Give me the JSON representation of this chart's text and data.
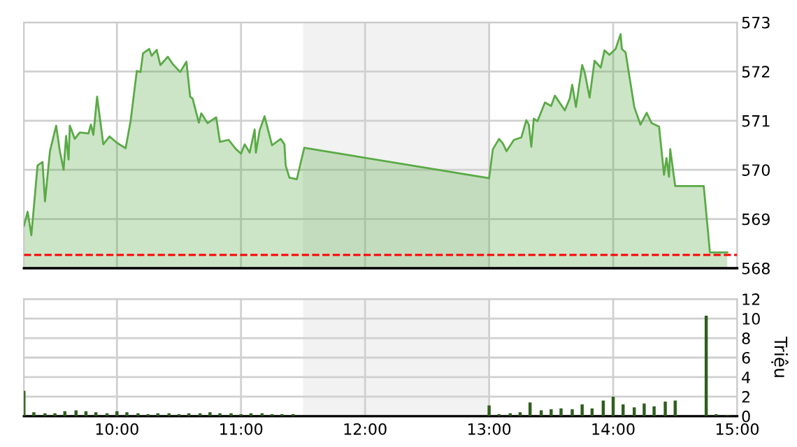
{
  "chart_data": [
    {
      "type": "area",
      "color": "#5aaa46",
      "x": [
        9.25,
        9.28,
        9.31,
        9.36,
        9.4,
        9.42,
        9.46,
        9.51,
        9.54,
        9.57,
        9.59,
        9.61,
        9.62,
        9.66,
        9.7,
        9.77,
        9.79,
        9.81,
        9.84,
        9.89,
        9.94,
        10.0,
        10.07,
        10.11,
        10.16,
        10.19,
        10.21,
        10.26,
        10.28,
        10.32,
        10.35,
        10.41,
        10.45,
        10.51,
        10.56,
        10.59,
        10.61,
        10.66,
        10.68,
        10.73,
        10.8,
        10.83,
        10.9,
        10.96,
        11.0,
        11.03,
        11.07,
        11.11,
        11.12,
        11.15,
        11.19,
        11.25,
        11.32,
        11.35,
        11.36,
        11.39,
        11.45,
        11.51,
        13.0,
        13.03,
        13.08,
        13.11,
        13.14,
        13.2,
        13.26,
        13.3,
        13.32,
        13.34,
        13.36,
        13.39,
        13.45,
        13.5,
        13.53,
        13.61,
        13.65,
        13.67,
        13.7,
        13.75,
        13.77,
        13.81,
        13.85,
        13.9,
        13.93,
        13.97,
        14.02,
        14.06,
        14.07,
        14.1,
        14.17,
        14.22,
        14.27,
        14.31,
        14.37,
        14.41,
        14.43,
        14.45,
        14.46,
        14.5,
        14.73,
        14.78,
        14.92
      ],
      "values": [
        568.86,
        569.15,
        568.67,
        570.09,
        570.16,
        569.36,
        570.38,
        570.9,
        570.38,
        570.0,
        570.69,
        570.21,
        570.9,
        570.63,
        570.76,
        570.74,
        570.92,
        570.71,
        571.49,
        570.52,
        570.68,
        570.55,
        570.44,
        570.99,
        572.01,
        571.99,
        572.37,
        572.46,
        572.32,
        572.44,
        572.13,
        572.3,
        572.15,
        571.99,
        572.2,
        571.49,
        571.45,
        570.96,
        571.15,
        570.95,
        571.07,
        570.57,
        570.61,
        570.42,
        570.33,
        570.52,
        570.35,
        570.82,
        570.35,
        570.8,
        571.09,
        570.5,
        570.63,
        570.52,
        570.09,
        569.84,
        569.81,
        570.45,
        569.83,
        570.42,
        570.63,
        570.54,
        570.38,
        570.61,
        570.66,
        571.01,
        570.92,
        570.47,
        571.04,
        570.99,
        571.37,
        571.3,
        571.51,
        571.21,
        571.45,
        571.73,
        571.28,
        572.13,
        571.99,
        571.47,
        572.22,
        572.08,
        572.43,
        572.34,
        572.46,
        572.76,
        572.46,
        572.39,
        571.28,
        570.92,
        571.16,
        570.95,
        570.88,
        569.9,
        570.24,
        569.86,
        570.42,
        569.67,
        569.67,
        568.32,
        568.32
      ],
      "xlim": [
        9.25,
        15
      ],
      "ylim": [
        568,
        573
      ],
      "yticks": [
        568,
        569,
        570,
        571,
        572,
        573
      ],
      "xticks": [
        {
          "value": 10,
          "label": null
        },
        {
          "value": 11,
          "label": null
        },
        {
          "value": 12,
          "label": null
        },
        {
          "value": 13,
          "label": null
        },
        {
          "value": 14,
          "label": null
        },
        {
          "value": 15,
          "label": null
        }
      ],
      "tick_labels": "y",
      "grid": true,
      "bands": [
        {
          "axis": "x",
          "from": 11.5,
          "to": 13.0,
          "color": "#f2f2f2"
        }
      ],
      "ref_lines": [
        {
          "axis": "y",
          "value": 568.27,
          "color": "#ff0000",
          "line_style": "dashed"
        }
      ]
    },
    {
      "type": "bar",
      "color": "#2e5e1e",
      "ylabel": "Triệu",
      "x": [
        9.25,
        9.33,
        9.42,
        9.5,
        9.58,
        9.67,
        9.75,
        9.83,
        9.92,
        10.0,
        10.08,
        10.17,
        10.25,
        10.33,
        10.42,
        10.5,
        10.58,
        10.67,
        10.75,
        10.83,
        10.92,
        11.0,
        11.08,
        11.17,
        11.25,
        11.33,
        11.42,
        13.0,
        13.08,
        13.17,
        13.25,
        13.33,
        13.42,
        13.5,
        13.58,
        13.67,
        13.75,
        13.83,
        13.92,
        14.0,
        14.08,
        14.17,
        14.25,
        14.33,
        14.42,
        14.5,
        14.75,
        14.83,
        14.92
      ],
      "values": [
        2.6,
        0.4,
        0.3,
        0.3,
        0.5,
        0.6,
        0.5,
        0.4,
        0.3,
        0.5,
        0.4,
        0.3,
        0.2,
        0.3,
        0.3,
        0.2,
        0.3,
        0.3,
        0.4,
        0.3,
        0.3,
        0.2,
        0.3,
        0.3,
        0.2,
        0.2,
        0.2,
        1.1,
        0.2,
        0.3,
        0.4,
        1.4,
        0.6,
        0.7,
        0.8,
        0.7,
        1.2,
        0.8,
        1.6,
        2.0,
        1.2,
        0.9,
        1.3,
        1.0,
        1.5,
        1.6,
        10.3,
        0.2,
        0.1
      ],
      "xlim": [
        9.25,
        15
      ],
      "ylim": [
        0,
        12
      ],
      "yticks": [
        0,
        2,
        4,
        6,
        8,
        10,
        12
      ],
      "xticks": [
        {
          "value": 10,
          "label": "10:00"
        },
        {
          "value": 11,
          "label": "11:00"
        },
        {
          "value": 12,
          "label": "12:00"
        },
        {
          "value": 13,
          "label": "13:00"
        },
        {
          "value": 14,
          "label": "14:00"
        },
        {
          "value": 15,
          "label": "15:00"
        }
      ],
      "grid": true,
      "bands": [
        {
          "axis": "x",
          "from": 11.5,
          "to": 13.0,
          "color": "#f2f2f2"
        }
      ]
    }
  ]
}
